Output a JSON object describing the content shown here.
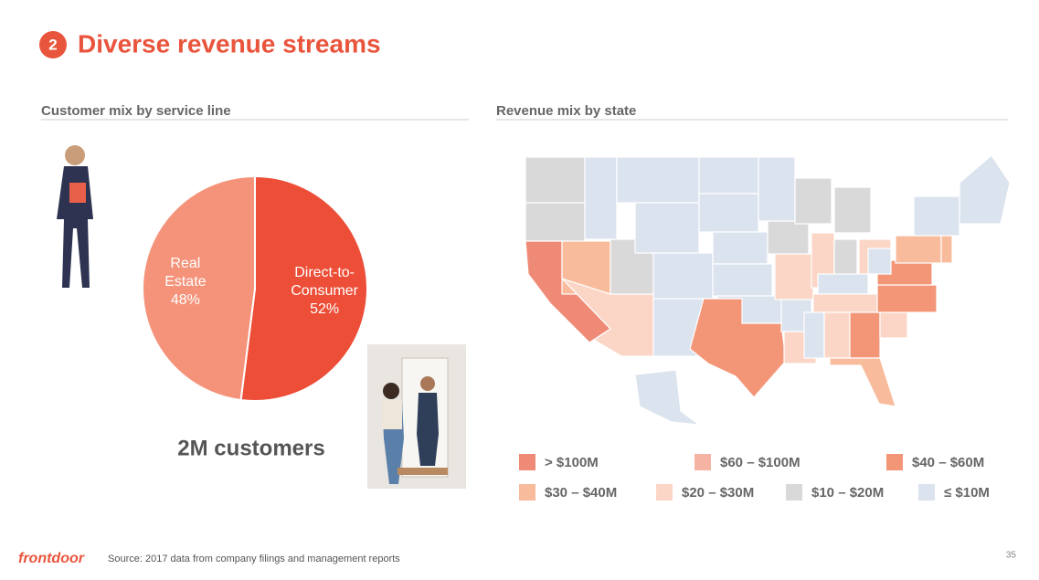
{
  "header": {
    "number": "2",
    "title": "Diverse revenue streams"
  },
  "chart_data": [
    {
      "type": "pie",
      "title": "Customer mix by service line",
      "categories": [
        "Real Estate",
        "Direct-to-Consumer"
      ],
      "values": [
        48,
        52
      ],
      "value_labels": [
        "48%",
        "52%"
      ],
      "colors": [
        "#f4937a",
        "#ec4e37"
      ],
      "annotation": "2M customers"
    },
    {
      "type": "map",
      "title": "Revenue mix by state",
      "legend": [
        {
          "label": "> $100M",
          "color": "#ef8a76"
        },
        {
          "label": "$60 – $100M",
          "color": "#f5b3a4"
        },
        {
          "label": "$40 – $60M",
          "color": "#f39577"
        },
        {
          "label": "$30 – $40M",
          "color": "#f8bb9c"
        },
        {
          "label": "$20 – $30M",
          "color": "#fbd6c7"
        },
        {
          "label": "$10 – $20M",
          "color": "#d9d9d9"
        },
        {
          "label": "≤ $10M",
          "color": "#dbe3ee"
        }
      ]
    }
  ],
  "footer": {
    "logo": "frontdoor",
    "source": "Source: 2017 data from company filings and management reports",
    "page": "35"
  }
}
